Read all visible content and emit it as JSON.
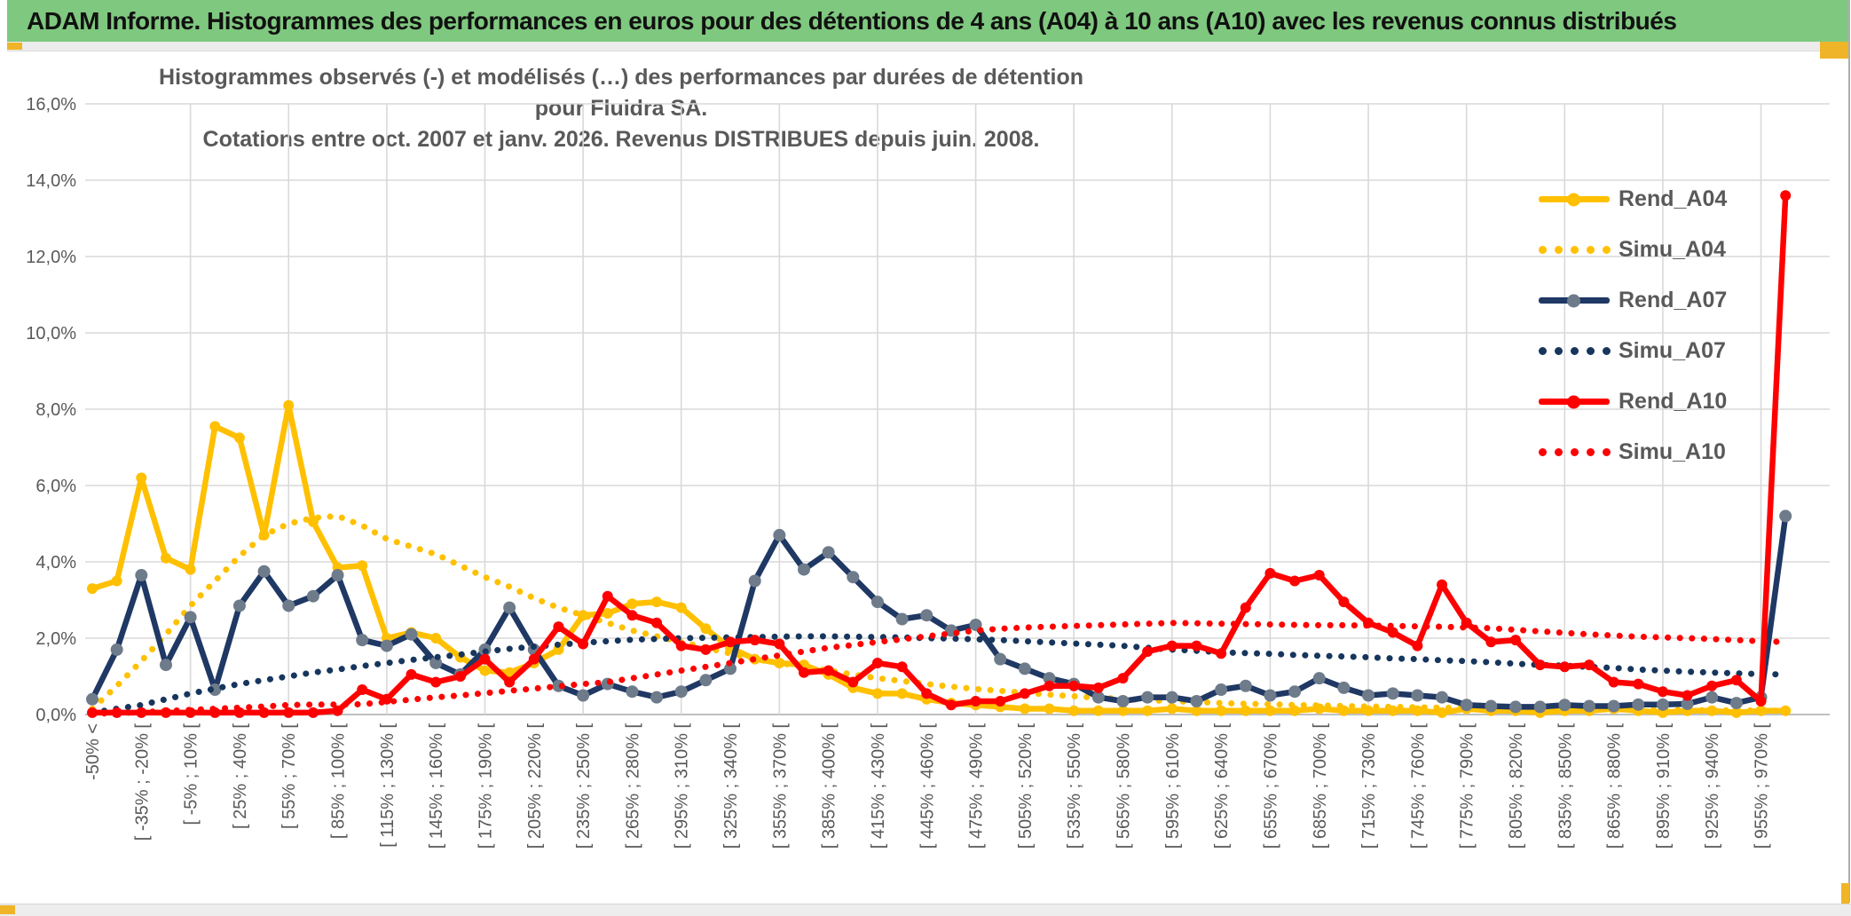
{
  "window": {
    "title": "ADAM Informe. Histogrammes des performances en euros pour des détentions de 4 ans (A04) à 10 ans (A10) avec les revenus connus distribués",
    "colors": {
      "titlebar_green": "#7FC87F",
      "accent_gold": "#EFB427",
      "rend_a04": "#FFC000",
      "rend_a07": "#1F3864",
      "rend_a10": "#FF0000",
      "a07_marker_gray": "#6E7B8A",
      "axis_text_gray": "#595959",
      "gridline_gray": "#D9D9D9"
    }
  },
  "chart": {
    "title_line1": "Histogrammes observés (-) et modélisés (…) des performances par durées de détention pour Fluidra SA.",
    "title_line2": "Cotations entre oct. 2007 et janv. 2026. Revenus DISTRIBUES depuis juin. 2008."
  },
  "legend": [
    {
      "label": "Rend_A04",
      "color": "#FFC000",
      "style": "solid",
      "marker": "#FFC000"
    },
    {
      "label": "Simu_A04",
      "color": "#FFC000",
      "style": "dotted",
      "marker": "#FFC000"
    },
    {
      "label": "Rend_A07",
      "color": "#1F3864",
      "style": "solid",
      "marker": "#6E7B8A"
    },
    {
      "label": "Simu_A07",
      "color": "#17365D",
      "style": "dotted",
      "marker": "#17365D"
    },
    {
      "label": "Rend_A10",
      "color": "#FF0000",
      "style": "solid",
      "marker": "#FF0000"
    },
    {
      "label": "Simu_A10",
      "color": "#FF0000",
      "style": "dotted",
      "marker": "#FF0000"
    }
  ],
  "chart_data": {
    "type": "line",
    "title": "Histogrammes observés (-) et modélisés (…) des performances par durées de détention pour Fluidra SA. Cotations entre oct. 2007 et janv. 2026. Revenus DISTRIBUES depuis juin. 2008.",
    "ylabel": "",
    "xlabel": "",
    "ylim": [
      0,
      16
    ],
    "y_tick_step_pct": 2,
    "grid": true,
    "legend_position": "right-inside",
    "n_bins": 70,
    "bin_width_pct": 15,
    "x_labels_every_other_bin": [
      "-50% <",
      "[ -35% ; -20% [",
      "[ -5% ; 10% [",
      "[ 25% ; 40% [",
      "[ 55% ; 70% [",
      "[ 85% ; 100% [",
      "[ 115% ; 130% [",
      "[ 145% ; 160% [",
      "[ 175% ; 190% [",
      "[ 205% ; 220% [",
      "[ 235% ; 250% [",
      "[ 265% ; 280% [",
      "[ 295% ; 310% [",
      "[ 325% ; 340% [",
      "[ 355% ; 370% [",
      "[ 385% ; 400% [",
      "[ 415% ; 430% [",
      "[ 445% ; 460% [",
      "[ 475% ; 490% [",
      "[ 505% ; 520% [",
      "[ 535% ; 550% [",
      "[ 565% ; 580% [",
      "[ 595% ; 610% [",
      "[ 625% ; 640% [",
      "[ 655% ; 670% [",
      "[ 685% ; 700% [",
      "[ 715% ; 730% [",
      "[ 745% ; 760% [",
      "[ 775% ; 790% [",
      "[ 805% ; 820% [",
      "[ 835% ; 850% [",
      "[ 865% ; 880% [",
      "[ 895% ; 910% [",
      "[ 925% ; 940% [",
      "[ 955% ; 970% ["
    ],
    "y_tick_labels_top_down": [
      "16,0%",
      "14,0%",
      "12,0%",
      "10,0%",
      "8,0%",
      "6,0%",
      "4,0%",
      "2,0%",
      "0,0%"
    ],
    "series": [
      {
        "name": "Rend_A04",
        "style": "solid",
        "color": "#FFC000",
        "marker": "#FFC000",
        "values": [
          3.3,
          3.5,
          6.2,
          4.1,
          3.8,
          7.55,
          7.25,
          4.7,
          8.1,
          5.05,
          3.85,
          3.9,
          2.0,
          2.15,
          2.0,
          1.5,
          1.15,
          1.1,
          1.35,
          1.7,
          2.6,
          2.65,
          2.9,
          2.95,
          2.8,
          2.25,
          1.75,
          1.45,
          1.35,
          1.3,
          1.05,
          0.7,
          0.55,
          0.55,
          0.4,
          0.3,
          0.25,
          0.2,
          0.15,
          0.15,
          0.1,
          0.1,
          0.1,
          0.1,
          0.15,
          0.1,
          0.1,
          0.1,
          0.1,
          0.1,
          0.15,
          0.1,
          0.1,
          0.1,
          0.1,
          0.05,
          0.15,
          0.1,
          0.1,
          0.05,
          0.1,
          0.1,
          0.15,
          0.1,
          0.05,
          0.1,
          0.1,
          0.05,
          0.1,
          0.1
        ]
      },
      {
        "name": "Simu_A04",
        "style": "dotted",
        "color": "#FFC000",
        "values": [
          0.15,
          0.75,
          1.4,
          2.1,
          2.85,
          3.5,
          4.15,
          4.7,
          5.0,
          5.15,
          5.2,
          4.95,
          4.6,
          4.4,
          4.2,
          3.9,
          3.6,
          3.35,
          3.05,
          2.8,
          2.6,
          2.4,
          2.2,
          2.05,
          1.9,
          1.75,
          1.6,
          1.45,
          1.35,
          1.25,
          1.15,
          1.05,
          0.95,
          0.88,
          0.8,
          0.73,
          0.67,
          0.62,
          0.57,
          0.52,
          0.48,
          0.44,
          0.41,
          0.38,
          0.35,
          0.33,
          0.3,
          0.28,
          0.27,
          0.25,
          0.24,
          0.22,
          0.21,
          0.2,
          0.19,
          0.18,
          0.17,
          0.16,
          0.16,
          0.15,
          0.14,
          0.14,
          0.13,
          0.13,
          0.12,
          0.12,
          0.11,
          0.11,
          0.1,
          0.1
        ]
      },
      {
        "name": "Rend_A07",
        "style": "solid",
        "color": "#1F3864",
        "marker": "#6E7B8A",
        "values": [
          0.4,
          1.7,
          3.65,
          1.3,
          2.55,
          0.65,
          2.85,
          3.75,
          2.85,
          3.1,
          3.65,
          1.95,
          1.8,
          2.1,
          1.35,
          1.05,
          1.7,
          2.8,
          1.7,
          0.75,
          0.5,
          0.8,
          0.6,
          0.45,
          0.6,
          0.9,
          1.2,
          3.5,
          4.7,
          3.8,
          4.25,
          3.6,
          2.95,
          2.5,
          2.6,
          2.2,
          2.35,
          1.45,
          1.2,
          0.95,
          0.8,
          0.45,
          0.35,
          0.45,
          0.45,
          0.35,
          0.65,
          0.75,
          0.5,
          0.6,
          0.95,
          0.7,
          0.5,
          0.55,
          0.5,
          0.45,
          0.25,
          0.22,
          0.2,
          0.2,
          0.25,
          0.22,
          0.22,
          0.26,
          0.26,
          0.28,
          0.45,
          0.3,
          0.45,
          5.2
        ]
      },
      {
        "name": "Simu_A07",
        "style": "dotted",
        "color": "#17365D",
        "values": [
          0.05,
          0.15,
          0.25,
          0.4,
          0.55,
          0.68,
          0.8,
          0.9,
          1.0,
          1.1,
          1.18,
          1.27,
          1.35,
          1.43,
          1.5,
          1.57,
          1.65,
          1.72,
          1.78,
          1.83,
          1.88,
          1.92,
          1.96,
          1.98,
          2.0,
          2.01,
          2.02,
          2.03,
          2.04,
          2.05,
          2.05,
          2.04,
          2.03,
          2.02,
          2.0,
          1.99,
          1.97,
          1.95,
          1.92,
          1.89,
          1.86,
          1.83,
          1.8,
          1.75,
          1.7,
          1.67,
          1.63,
          1.61,
          1.59,
          1.56,
          1.54,
          1.52,
          1.5,
          1.47,
          1.45,
          1.42,
          1.4,
          1.37,
          1.33,
          1.3,
          1.28,
          1.25,
          1.22,
          1.18,
          1.15,
          1.12,
          1.1,
          1.08,
          1.06,
          1.05
        ]
      },
      {
        "name": "Rend_A10",
        "style": "solid",
        "color": "#FF0000",
        "marker": "#FF0000",
        "values": [
          0.05,
          0.05,
          0.05,
          0.05,
          0.05,
          0.05,
          0.05,
          0.05,
          0.05,
          0.05,
          0.1,
          0.65,
          0.4,
          1.05,
          0.85,
          1.0,
          1.45,
          0.85,
          1.45,
          2.3,
          1.85,
          3.1,
          2.6,
          2.4,
          1.8,
          1.7,
          1.9,
          1.95,
          1.85,
          1.1,
          1.15,
          0.85,
          1.35,
          1.25,
          0.55,
          0.25,
          0.35,
          0.35,
          0.55,
          0.75,
          0.75,
          0.7,
          0.95,
          1.65,
          1.8,
          1.8,
          1.6,
          2.8,
          3.7,
          3.5,
          3.65,
          2.95,
          2.4,
          2.15,
          1.8,
          3.4,
          2.4,
          1.9,
          1.95,
          1.3,
          1.25,
          1.3,
          0.85,
          0.8,
          0.6,
          0.5,
          0.75,
          0.9,
          0.35,
          13.6
        ]
      },
      {
        "name": "Simu_A10",
        "style": "dotted",
        "color": "#FF0000",
        "values": [
          0.02,
          0.04,
          0.06,
          0.09,
          0.12,
          0.15,
          0.18,
          0.21,
          0.25,
          0.26,
          0.26,
          0.27,
          0.33,
          0.39,
          0.45,
          0.5,
          0.56,
          0.62,
          0.68,
          0.74,
          0.8,
          0.85,
          0.95,
          1.05,
          1.15,
          1.25,
          1.35,
          1.45,
          1.55,
          1.65,
          1.75,
          1.82,
          1.9,
          1.97,
          2.05,
          2.12,
          2.2,
          2.25,
          2.28,
          2.3,
          2.32,
          2.34,
          2.36,
          2.38,
          2.4,
          2.39,
          2.38,
          2.37,
          2.36,
          2.35,
          2.34,
          2.34,
          2.33,
          2.32,
          2.31,
          2.3,
          2.28,
          2.26,
          2.22,
          2.18,
          2.14,
          2.1,
          2.07,
          2.04,
          2.02,
          2.0,
          1.98,
          1.95,
          1.92,
          1.9
        ]
      }
    ]
  }
}
